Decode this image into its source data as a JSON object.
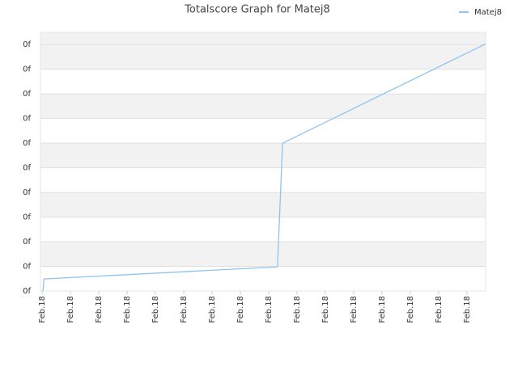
{
  "chart_data": {
    "type": "line",
    "title": "Totalscore Graph for Matej8",
    "x": [
      0.03,
      0.06,
      8.31,
      8.49,
      15.66
    ],
    "series": [
      {
        "name": "Matej8",
        "color": "#90c4ee",
        "values": [
          0,
          0.49,
          0.98,
          6.0,
          10.03
        ]
      }
    ],
    "xlim": [
      -0.06,
      15.66
    ],
    "xticks": [
      {
        "value": 0,
        "label": "Feb.18"
      },
      {
        "value": 1,
        "label": "Feb.18"
      },
      {
        "value": 2,
        "label": "Feb.18"
      },
      {
        "value": 3,
        "label": "Feb.18"
      },
      {
        "value": 4,
        "label": "Feb.18"
      },
      {
        "value": 5,
        "label": "Feb.18"
      },
      {
        "value": 6,
        "label": "Feb.18"
      },
      {
        "value": 7,
        "label": "Feb.18"
      },
      {
        "value": 8,
        "label": "Feb.18"
      },
      {
        "value": 9,
        "label": "Feb.18"
      },
      {
        "value": 10,
        "label": "Feb.18"
      },
      {
        "value": 11,
        "label": "Feb.18"
      },
      {
        "value": 12,
        "label": "Feb.18"
      },
      {
        "value": 13,
        "label": "Feb.18"
      },
      {
        "value": 14,
        "label": "Feb.18"
      },
      {
        "value": 15,
        "label": "Feb.18"
      }
    ],
    "ylim": [
      0,
      10.5
    ],
    "yticks": [
      {
        "value": 0,
        "label": "0f"
      },
      {
        "value": 1,
        "label": "0f"
      },
      {
        "value": 2,
        "label": "0f"
      },
      {
        "value": 3,
        "label": "0f"
      },
      {
        "value": 4,
        "label": "0f"
      },
      {
        "value": 5,
        "label": "0f"
      },
      {
        "value": 6,
        "label": "0f"
      },
      {
        "value": 7,
        "label": "0f"
      },
      {
        "value": 8,
        "label": "0f"
      },
      {
        "value": 9,
        "label": "0f"
      },
      {
        "value": 10,
        "label": "0f"
      }
    ],
    "grid": true,
    "legend": "top-right"
  }
}
